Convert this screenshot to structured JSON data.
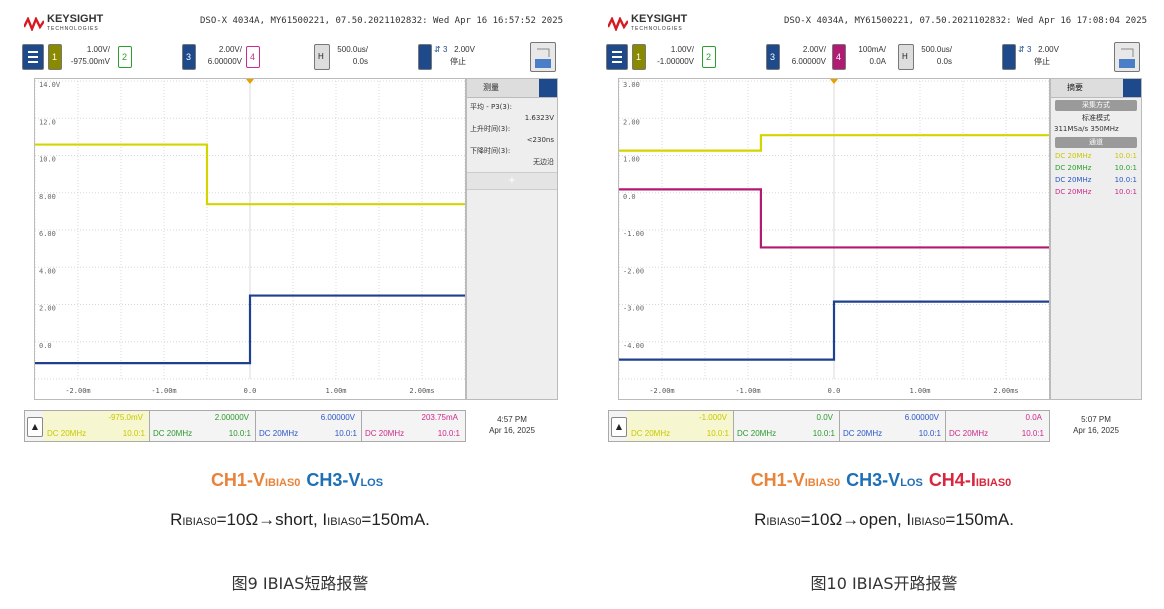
{
  "figures": [
    {
      "brand": "KEYSIGHT",
      "brand_sub": "TECHNOLOGIES",
      "model_line": "DSO-X 4034A, MY61500221, 07.50.2021102832: Wed Apr 16 16:57:52 2025",
      "channels": {
        "ch1": {
          "scale": "1.00V/",
          "offset": "-975.00mV"
        },
        "ch2_label": "2",
        "ch3": {
          "scale": "2.00V/",
          "offset": "6.00000V"
        },
        "ch4_label": "4",
        "h_label": "H",
        "timebase": {
          "scale": "500.0us/",
          "delay": "0.0s"
        },
        "trigger": {
          "src": "3",
          "level": "2.00V",
          "status": "停止"
        }
      },
      "y_ticks": [
        "14.0V",
        "12.0",
        "10.0",
        "8.00",
        "6.00",
        "4.00",
        "2.00",
        "0.0"
      ],
      "x_ticks": [
        "-2.00m",
        "-1.00m",
        "0.0",
        "1.00m",
        "2.00ms"
      ],
      "side": {
        "title": "测量",
        "lines": [
          "平均 - P3(3):",
          "1.6323V",
          "上升时间(3):",
          "<230ns",
          "下降时间(3):",
          "无边沿"
        ]
      },
      "footer": [
        {
          "value": "-975.0mV",
          "cpl": "DC 20MHz",
          "probe": "10.0:1"
        },
        {
          "value": "2.00000V",
          "cpl": "DC 20MHz",
          "probe": "10.0:1"
        },
        {
          "value": "6.00000V",
          "cpl": "DC 20MHz",
          "probe": "10.0:1"
        },
        {
          "value": "203.75mA",
          "cpl": "DC 20MHz",
          "probe": "10.0:1"
        }
      ],
      "time": "4:57 PM",
      "date": "Apr 16, 2025",
      "caption_channels": [
        {
          "pre": "CH1-V",
          "sub": "IBIAS0",
          "color": "#E8833A"
        },
        {
          "pre": "CH3-V",
          "sub": "LOS",
          "color": "#1F6FB5"
        }
      ],
      "caption_cond": {
        "r": "R",
        "r_sub": "IBIAS0",
        "mid": "=10Ω→short, I",
        "i_sub": "IBIAS0",
        "end": "=150mA."
      },
      "caption_fig": "图9 IBIAS短路报警",
      "chart_data": {
        "type": "line",
        "xlabel": "",
        "ylabel": "",
        "xlim": [
          -2.5,
          2.5
        ],
        "series": [
          {
            "name": "CH1",
            "color": "#d4d400",
            "x": [
              -2.5,
              -0.5,
              -0.5,
              2.5
            ],
            "y": [
              10.8,
              10.8,
              7.8,
              7.8
            ]
          },
          {
            "name": "CH3",
            "color": "#1f3f8f",
            "x": [
              -2.5,
              0.0,
              0.0,
              2.5
            ],
            "y": [
              -0.2,
              -0.2,
              3.2,
              3.2
            ]
          }
        ],
        "ylim": [
          -1,
          14
        ]
      }
    },
    {
      "brand": "KEYSIGHT",
      "brand_sub": "TECHNOLOGIES",
      "model_line": "DSO-X 4034A, MY61500221, 07.50.2021102832: Wed Apr 16 17:08:04 2025",
      "channels": {
        "ch1": {
          "scale": "1.00V/",
          "offset": "-1.00000V"
        },
        "ch2_label": "2",
        "ch3": {
          "scale": "2.00V/",
          "offset": "6.00000V"
        },
        "ch4": {
          "scale": "100mA/",
          "offset": "0.0A"
        },
        "h_label": "H",
        "timebase": {
          "scale": "500.0us/",
          "delay": "0.0s"
        },
        "trigger": {
          "src": "3",
          "level": "2.00V",
          "status": "停止"
        }
      },
      "y_ticks": [
        "3.00",
        "2.00",
        "1.00",
        "0.0",
        "-1.00",
        "-2.00",
        "-3.00",
        "-4.00"
      ],
      "x_ticks": [
        "-2.00m",
        "-1.00m",
        "0.0",
        "1.00m",
        "2.00ms"
      ],
      "side": {
        "title": "摘要",
        "mode_bar": "采集方式",
        "mode": "标准模式",
        "rate": "311MSa/s 350MHz",
        "ch_bar": "通道",
        "rows": [
          {
            "cpl": "DC 20MHz",
            "probe": "10.0:1",
            "color": "#c8c800"
          },
          {
            "cpl": "DC 20MHz",
            "probe": "10.0:1",
            "color": "#2aa02a"
          },
          {
            "cpl": "DC 20MHz",
            "probe": "10.0:1",
            "color": "#2a56c8"
          },
          {
            "cpl": "DC 20MHz",
            "probe": "10.0:1",
            "color": "#cc2a8a"
          }
        ]
      },
      "footer": [
        {
          "value": "-1.000V",
          "cpl": "DC 20MHz",
          "probe": "10.0:1"
        },
        {
          "value": "0.0V",
          "cpl": "DC 20MHz",
          "probe": "10.0:1"
        },
        {
          "value": "6.00000V",
          "cpl": "DC 20MHz",
          "probe": "10.0:1"
        },
        {
          "value": "0.0A",
          "cpl": "DC 20MHz",
          "probe": "10.0:1"
        }
      ],
      "time": "5:07 PM",
      "date": "Apr 16, 2025",
      "caption_channels": [
        {
          "pre": "CH1-V",
          "sub": "IBIAS0",
          "color": "#E8833A"
        },
        {
          "pre": "CH3-V",
          "sub": "LOS",
          "color": "#1F6FB5"
        },
        {
          "pre": "CH4-I",
          "sub": "IBIAS0",
          "color": "#D7263D"
        }
      ],
      "caption_cond": {
        "r": "R",
        "r_sub": "IBIAS0",
        "mid": "=10Ω→open, I",
        "i_sub": "IBIAS0",
        "end": "=150mA."
      },
      "caption_fig": "图10 IBIAS开路报警",
      "chart_data": {
        "type": "line",
        "xlabel": "",
        "ylabel": "",
        "xlim": [
          -2.5,
          2.5
        ],
        "series": [
          {
            "name": "CH1",
            "color": "#d4d400",
            "x": [
              -2.5,
              -0.85,
              -0.85,
              2.5
            ],
            "y": [
              1.4,
              1.4,
              1.8,
              1.8
            ]
          },
          {
            "name": "CH4",
            "color": "#b01a72",
            "x": [
              -2.5,
              -0.85,
              -0.85,
              2.5
            ],
            "y": [
              0.4,
              0.4,
              -1.1,
              -1.1
            ]
          },
          {
            "name": "CH3",
            "color": "#1f3f8f",
            "x": [
              -2.5,
              0.0,
              0.0,
              2.5
            ],
            "y": [
              -4.0,
              -4.0,
              -2.5,
              -2.5
            ]
          }
        ],
        "ylim": [
          -4.5,
          3.2
        ]
      }
    }
  ]
}
